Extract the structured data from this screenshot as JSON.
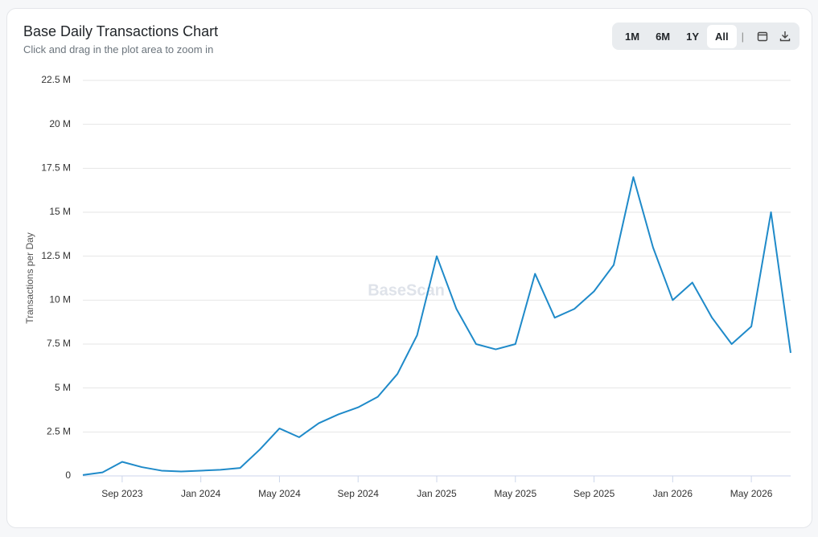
{
  "chart_data": {
    "type": "line",
    "title": "Base Daily Transactions Chart",
    "subtitle": "Click and drag in the plot area to zoom in",
    "y_label": "Transactions per Day",
    "watermark": "BaseScan",
    "x": [
      "2023-07",
      "2023-08",
      "2023-09",
      "2023-10",
      "2023-11",
      "2023-12",
      "2024-01",
      "2024-02",
      "2024-03",
      "2024-04",
      "2024-05",
      "2024-06",
      "2024-07",
      "2024-08",
      "2024-09",
      "2024-10",
      "2024-11",
      "2024-12",
      "2025-01",
      "2025-02",
      "2025-03",
      "2025-04",
      "2025-05",
      "2025-06",
      "2025-07",
      "2025-08",
      "2025-09",
      "2025-10",
      "2025-11",
      "2025-12",
      "2026-01",
      "2026-02",
      "2026-03",
      "2026-04",
      "2026-05",
      "2026-06",
      "2026-07"
    ],
    "series": [
      {
        "name": "Transactions per Day",
        "color": "#1f8ac9",
        "values": [
          50000,
          200000,
          800000,
          500000,
          300000,
          250000,
          300000,
          350000,
          450000,
          1500000,
          2700000,
          2200000,
          3000000,
          3500000,
          3900000,
          4500000,
          5800000,
          8000000,
          12500000,
          9500000,
          7500000,
          7200000,
          7500000,
          11500000,
          9000000,
          9500000,
          10500000,
          12000000,
          17000000,
          13000000,
          10000000,
          11000000,
          9000000,
          7500000,
          8500000,
          15000000,
          7000000
        ]
      }
    ],
    "xlim": [
      "2023-07",
      "2026-07"
    ],
    "xticks": [
      {
        "value": "2023-09",
        "label": "Sep 2023"
      },
      {
        "value": "2024-01",
        "label": "Jan 2024"
      },
      {
        "value": "2024-05",
        "label": "May 2024"
      },
      {
        "value": "2024-09",
        "label": "Sep 2024"
      },
      {
        "value": "2025-01",
        "label": "Jan 2025"
      },
      {
        "value": "2025-05",
        "label": "May 2025"
      },
      {
        "value": "2025-09",
        "label": "Sep 2025"
      },
      {
        "value": "2026-01",
        "label": "Jan 2026"
      },
      {
        "value": "2026-05",
        "label": "May 2026"
      }
    ],
    "ylim": [
      0,
      22500000
    ],
    "yticks": [
      {
        "value": 0,
        "label": "0"
      },
      {
        "value": 2500000,
        "label": "2.5 M"
      },
      {
        "value": 5000000,
        "label": "5 M"
      },
      {
        "value": 7500000,
        "label": "7.5 M"
      },
      {
        "value": 10000000,
        "label": "10 M"
      },
      {
        "value": 12500000,
        "label": "12.5 M"
      },
      {
        "value": 15000000,
        "label": "15 M"
      },
      {
        "value": 17500000,
        "label": "17.5 M"
      },
      {
        "value": 20000000,
        "label": "20 M"
      },
      {
        "value": 22500000,
        "label": "22.5 M"
      }
    ],
    "grid": true
  },
  "controls": {
    "range_buttons": [
      "1M",
      "6M",
      "1Y",
      "All"
    ],
    "active": "All",
    "separator": "|"
  }
}
